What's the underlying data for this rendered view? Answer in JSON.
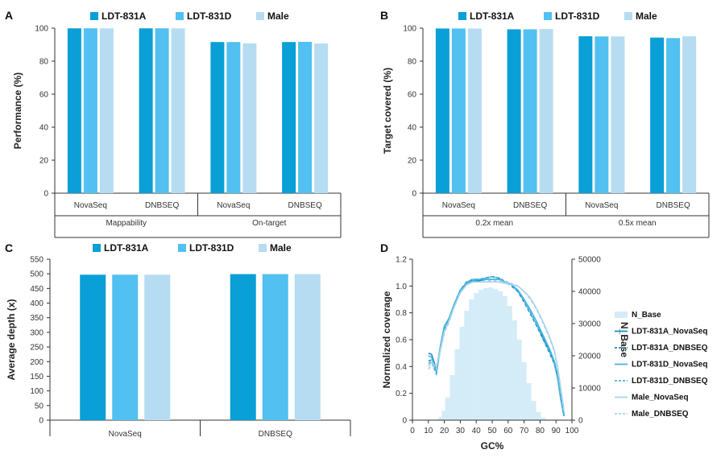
{
  "chart_data": [
    {
      "panel": "A",
      "type": "bar",
      "ylabel": "Performance (%)",
      "ylim": [
        0,
        100
      ],
      "yticks": [
        0,
        20,
        40,
        60,
        80,
        100
      ],
      "groups": [
        {
          "label": "Mappability",
          "categories": [
            "NovaSeq",
            "DNBSEQ"
          ]
        },
        {
          "label": "On-target",
          "categories": [
            "NovaSeq",
            "DNBSEQ"
          ]
        }
      ],
      "series": [
        {
          "name": "LDT-831A",
          "values": [
            99.9,
            99.9,
            91.6,
            91.6
          ]
        },
        {
          "name": "LDT-831D",
          "values": [
            99.9,
            99.9,
            91.6,
            91.7
          ]
        },
        {
          "name": "Male",
          "values": [
            99.9,
            99.9,
            90.8,
            90.7
          ]
        }
      ],
      "legend": "top",
      "grid": false
    },
    {
      "panel": "B",
      "type": "bar",
      "ylabel": "Target covered (%)",
      "ylim": [
        0,
        100
      ],
      "yticks": [
        0,
        20,
        40,
        60,
        80,
        100
      ],
      "groups": [
        {
          "label": "0.2x mean",
          "categories": [
            "NovaSeq",
            "DNBSEQ"
          ]
        },
        {
          "label": "0.5x mean",
          "categories": [
            "NovaSeq",
            "DNBSEQ"
          ]
        }
      ],
      "series": [
        {
          "name": "LDT-831A",
          "values": [
            99.8,
            99.3,
            95.1,
            94.3
          ]
        },
        {
          "name": "LDT-831D",
          "values": [
            99.8,
            99.3,
            95.0,
            94.0
          ]
        },
        {
          "name": "Male",
          "values": [
            99.8,
            99.5,
            95.0,
            95.1
          ]
        }
      ],
      "legend": "top",
      "grid": false
    },
    {
      "panel": "C",
      "type": "bar",
      "ylabel": "Average depth (x)",
      "ylim": [
        0,
        550
      ],
      "yticks": [
        0,
        50,
        100,
        150,
        200,
        250,
        300,
        350,
        400,
        450,
        500,
        550
      ],
      "categories": [
        "NovaSeq",
        "DNBSEQ"
      ],
      "series": [
        {
          "name": "LDT-831A",
          "values": [
            497,
            499
          ]
        },
        {
          "name": "LDT-831D",
          "values": [
            497,
            499
          ]
        },
        {
          "name": "Male",
          "values": [
            497,
            499
          ]
        }
      ],
      "legend": "top",
      "grid": false
    },
    {
      "panel": "D",
      "type": "line",
      "xlabel": "GC%",
      "ylabel": "Normalized coverage",
      "y2label": "N_Base",
      "xlim": [
        0,
        100
      ],
      "xticks": [
        0,
        10,
        20,
        30,
        40,
        50,
        60,
        70,
        80,
        90,
        100
      ],
      "ylim": [
        0,
        1.2
      ],
      "yticks": [
        0,
        0.2,
        0.4,
        0.6,
        0.8,
        1.0,
        1.2
      ],
      "y2lim": [
        0,
        50000
      ],
      "y2ticks": [
        0,
        10000,
        20000,
        30000,
        40000,
        50000
      ],
      "x": [
        10,
        12,
        15,
        18,
        20,
        23,
        26,
        30,
        34,
        38,
        42,
        46,
        50,
        54,
        58,
        62,
        66,
        70,
        74,
        78,
        82,
        86,
        89,
        91,
        93,
        95
      ],
      "n_base": {
        "name": "N_Base",
        "x": [
          15,
          18,
          20,
          22,
          25,
          28,
          31,
          34,
          37,
          40,
          43,
          46,
          49,
          52,
          55,
          58,
          61,
          64,
          67,
          70,
          73,
          76,
          79,
          82,
          85
        ],
        "values": [
          200,
          1000,
          3000,
          7000,
          14000,
          22000,
          29000,
          34000,
          37500,
          39500,
          40500,
          41000,
          41200,
          40800,
          40000,
          38500,
          35500,
          31000,
          25000,
          18000,
          11500,
          6000,
          2500,
          800,
          200
        ]
      },
      "series": [
        {
          "name": "LDT-831A_NovaSeq",
          "values": [
            0.5,
            0.49,
            0.38,
            0.58,
            0.7,
            0.76,
            0.86,
            0.96,
            1.02,
            1.04,
            1.04,
            1.05,
            1.05,
            1.05,
            1.03,
            1.01,
            0.97,
            0.9,
            0.82,
            0.73,
            0.62,
            0.52,
            0.43,
            0.33,
            0.18,
            0.04
          ]
        },
        {
          "name": "LDT-831A_DNBSEQ",
          "values": [
            0.44,
            0.45,
            0.35,
            0.56,
            0.68,
            0.75,
            0.86,
            0.97,
            1.03,
            1.05,
            1.05,
            1.06,
            1.07,
            1.06,
            1.03,
            1.0,
            0.96,
            0.88,
            0.79,
            0.7,
            0.6,
            0.5,
            0.42,
            0.32,
            0.16,
            0.03
          ]
        },
        {
          "name": "LDT-831D_NovaSeq",
          "values": [
            0.48,
            0.47,
            0.36,
            0.58,
            0.7,
            0.76,
            0.86,
            0.96,
            1.02,
            1.04,
            1.05,
            1.05,
            1.05,
            1.05,
            1.03,
            1.01,
            0.97,
            0.9,
            0.82,
            0.73,
            0.63,
            0.53,
            0.44,
            0.34,
            0.19,
            0.05
          ]
        },
        {
          "name": "LDT-831D_DNBSEQ",
          "values": [
            0.42,
            0.44,
            0.34,
            0.57,
            0.69,
            0.75,
            0.86,
            0.97,
            1.03,
            1.05,
            1.05,
            1.06,
            1.07,
            1.06,
            1.04,
            1.01,
            0.96,
            0.89,
            0.8,
            0.71,
            0.6,
            0.51,
            0.42,
            0.31,
            0.15,
            0.03
          ]
        },
        {
          "name": "Male_NovaSeq",
          "values": [
            0.4,
            0.43,
            0.4,
            0.55,
            0.66,
            0.74,
            0.84,
            0.95,
            1.01,
            1.03,
            1.03,
            1.03,
            1.03,
            1.03,
            1.02,
            1.01,
            1.0,
            0.96,
            0.91,
            0.83,
            0.73,
            0.62,
            0.52,
            0.4,
            0.24,
            0.08
          ]
        },
        {
          "name": "Male_DNBSEQ",
          "values": [
            0.38,
            0.41,
            0.38,
            0.54,
            0.65,
            0.73,
            0.84,
            0.95,
            1.01,
            1.03,
            1.03,
            1.04,
            1.04,
            1.04,
            1.03,
            1.02,
            1.0,
            0.96,
            0.9,
            0.82,
            0.72,
            0.61,
            0.51,
            0.39,
            0.22,
            0.06
          ]
        }
      ],
      "legend": "right",
      "grid": false
    }
  ],
  "colors": {
    "LDT-831A": "#0a9fd6",
    "LDT-831D": "#52c0f0",
    "Male": "#b6dcf1",
    "n_base": "#d3ecf7",
    "axis": "#333333"
  },
  "line_styles": {
    "LDT-831A_NovaSeq": {
      "color": "#1a8fbf",
      "dash": ""
    },
    "LDT-831A_DNBSEQ": {
      "color": "#1a8fbf",
      "dash": "4,3"
    },
    "LDT-831D_NovaSeq": {
      "color": "#45b4e2",
      "dash": ""
    },
    "LDT-831D_DNBSEQ": {
      "color": "#45b4e2",
      "dash": "4,3"
    },
    "Male_NovaSeq": {
      "color": "#a9d3ea",
      "dash": ""
    },
    "Male_DNBSEQ": {
      "color": "#a9d3ea",
      "dash": "4,3"
    }
  }
}
